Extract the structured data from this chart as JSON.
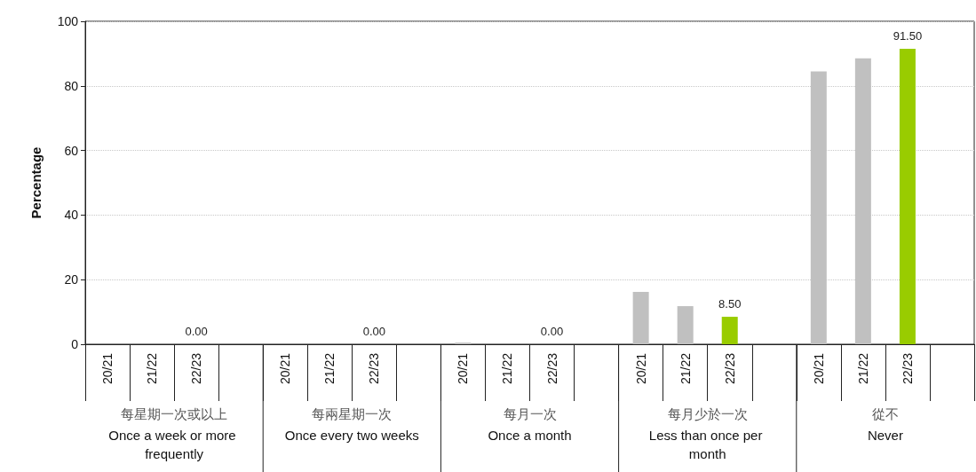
{
  "chart_data": {
    "type": "bar",
    "ylabel": "Percentage",
    "categories": [
      "20/21",
      "21/22",
      "22/23",
      null,
      "20/21",
      "21/22",
      "22/23",
      null,
      "20/21",
      "21/22",
      "22/23",
      null,
      "20/21",
      "21/22",
      "22/23",
      null,
      "20/21",
      "21/22",
      "22/23",
      null
    ],
    "values": [
      0,
      0,
      0,
      null,
      0,
      0,
      0,
      null,
      0.5,
      0,
      0,
      null,
      16.2,
      11.8,
      8.5,
      null,
      84.5,
      88.5,
      91.5,
      null
    ],
    "colors": [
      "#c0c0c0",
      "#c0c0c0",
      "#99cc00",
      null,
      "#c0c0c0",
      "#c0c0c0",
      "#99cc00",
      null,
      "#c0c0c0",
      "#c0c0c0",
      "#99cc00",
      null,
      "#c0c0c0",
      "#c0c0c0",
      "#99cc00",
      null,
      "#c0c0c0",
      "#c0c0c0",
      "#99cc00",
      null
    ],
    "value_labels": [
      null,
      null,
      "0.00",
      null,
      null,
      null,
      "0.00",
      null,
      null,
      null,
      "0.00",
      null,
      null,
      null,
      "8.50",
      null,
      null,
      null,
      "91.50",
      null
    ],
    "annotations": [
      "每星期一次或以上\nOnce a week or more frequently",
      "每兩星期一次\nOnce every two weeks",
      "每月一次\nOnce a month",
      "每月少於一次\nLess than once per month",
      "從不\nNever"
    ],
    "ylim": [
      0,
      100
    ],
    "yticks": [
      0,
      20,
      40,
      60,
      80,
      100
    ],
    "grid": "y"
  }
}
